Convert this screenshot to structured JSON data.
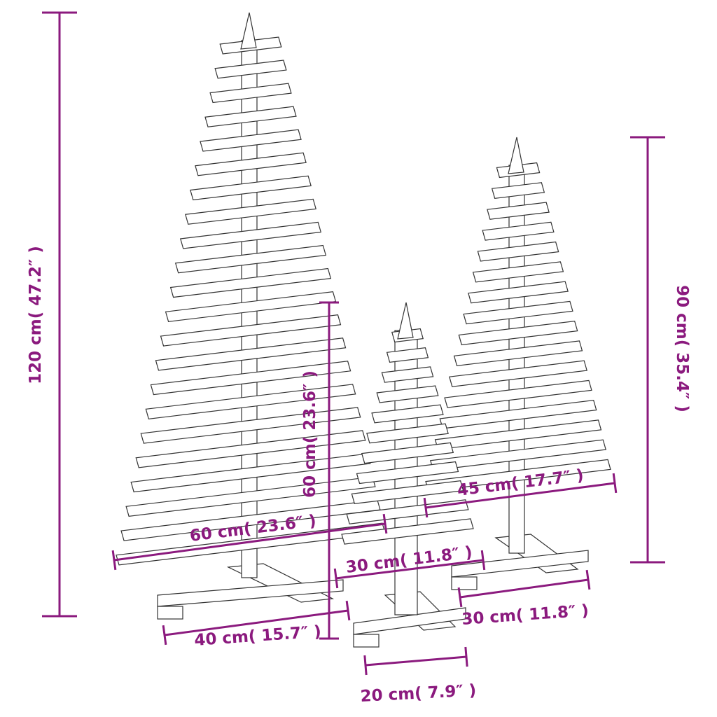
{
  "accent_color": "#8b1a7e",
  "line_color": "#333333",
  "dimensions": {
    "tall_height": "120 cm( 47.2″ )",
    "tall_width": "60 cm( 23.6″ )",
    "tall_base": "40 cm( 15.7″ )",
    "small_height": "60 cm( 23.6″ )",
    "small_width": "30 cm( 11.8″ )",
    "small_base": "20 cm( 7.9″ )",
    "medium_height": "90 cm( 35.4″ )",
    "medium_width": "45 cm( 17.7″ )",
    "medium_base": "30 cm( 11.8″ )"
  }
}
